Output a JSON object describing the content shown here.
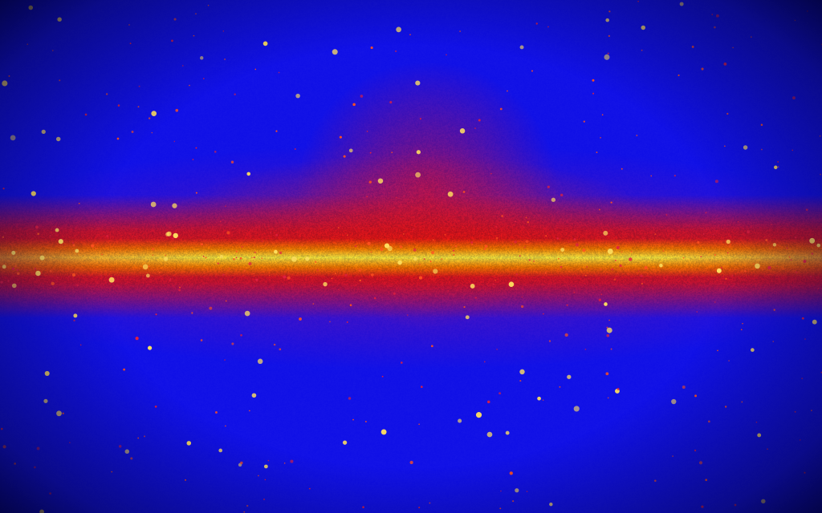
{
  "image": {
    "subject": "gamma-ray-sky-map",
    "colors": {
      "background": "#1414e6",
      "band": "#f01414",
      "band_core": "#fff03c",
      "sources": "#ff5020"
    }
  }
}
